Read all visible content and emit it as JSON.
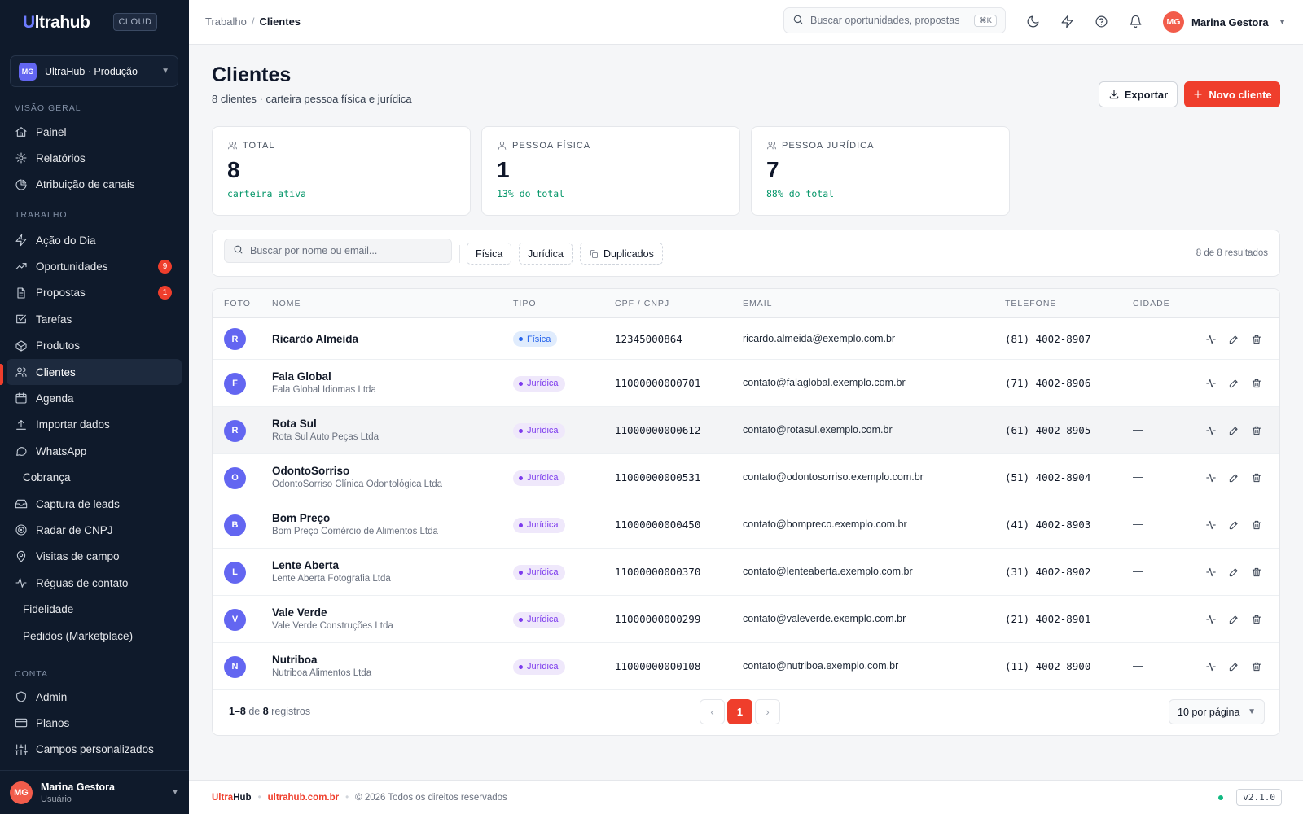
{
  "brand": {
    "name_u": "U",
    "name_rest": "ltrahub",
    "cloud_badge": "CLOUD"
  },
  "workspace": {
    "initials": "MG",
    "name": "UltraHub · Produção"
  },
  "sidebar": {
    "sections": {
      "overview": "VISÃO GERAL",
      "work": "TRABALHO",
      "account": "CONTA"
    },
    "overview_items": [
      {
        "label": "Painel",
        "icon": "home-icon"
      },
      {
        "label": "Relatórios",
        "icon": "chart-icon"
      },
      {
        "label": "Atribuição de canais",
        "icon": "pie-icon"
      }
    ],
    "work_items": [
      {
        "label": "Ação do Dia",
        "icon": "bolt-icon"
      },
      {
        "label": "Oportunidades",
        "icon": "trending-icon",
        "badge": "9"
      },
      {
        "label": "Propostas",
        "icon": "document-icon",
        "badge": "1"
      },
      {
        "label": "Tarefas",
        "icon": "checklist-icon"
      },
      {
        "label": "Produtos",
        "icon": "box-icon"
      },
      {
        "label": "Clientes",
        "icon": "users-icon",
        "active": true
      },
      {
        "label": "Agenda",
        "icon": "calendar-icon"
      },
      {
        "label": "Importar dados",
        "icon": "upload-icon"
      },
      {
        "label": "WhatsApp",
        "icon": "chat-icon"
      },
      {
        "label": "Cobrança",
        "icon": ""
      },
      {
        "label": "Captura de leads",
        "icon": "inbox-icon"
      },
      {
        "label": "Radar de CNPJ",
        "icon": "radar-icon"
      },
      {
        "label": "Visitas de campo",
        "icon": "map-pin-icon"
      },
      {
        "label": "Réguas de contato",
        "icon": "activity-icon"
      },
      {
        "label": "Fidelidade",
        "icon": ""
      },
      {
        "label": "Pedidos (Marketplace)",
        "icon": ""
      }
    ],
    "account_items": [
      {
        "label": "Admin",
        "icon": "shield-icon"
      },
      {
        "label": "Planos",
        "icon": "card-icon"
      },
      {
        "label": "Campos personalizados",
        "icon": "sliders-icon"
      }
    ],
    "user": {
      "initials": "MG",
      "name": "Marina Gestora",
      "role": "Usuário"
    }
  },
  "topbar": {
    "breadcrumb": {
      "parent": "Trabalho",
      "separator": "/",
      "current": "Clientes"
    },
    "search_placeholder": "Buscar oportunidades, propostas",
    "search_shortcut": "⌘K",
    "user": {
      "initials": "MG",
      "name": "Marina Gestora"
    }
  },
  "page": {
    "title": "Clientes",
    "subtitle": "8 clientes · carteira pessoa física e jurídica",
    "export_label": "Exportar",
    "new_label": "Novo cliente"
  },
  "stats": [
    {
      "label": "TOTAL",
      "value": "8",
      "note": "carteira ativa"
    },
    {
      "label": "PESSOA FÍSICA",
      "value": "1",
      "note": "13% do total"
    },
    {
      "label": "PESSOA JURÍDICA",
      "value": "7",
      "note": "88% do total"
    }
  ],
  "filters": {
    "search_placeholder": "Buscar por nome ou email...",
    "chips": [
      "Física",
      "Jurídica",
      "Duplicados"
    ],
    "results": "8 de 8 resultados"
  },
  "table": {
    "headers": [
      "FOTO",
      "NOME",
      "TIPO",
      "CPF / CNPJ",
      "EMAIL",
      "TELEFONE",
      "CIDADE"
    ],
    "rows": [
      {
        "initial": "R",
        "name": "Ricardo Almeida",
        "legal": "",
        "type": "Física",
        "doc": "12345000864",
        "email": "ricardo.almeida@exemplo.com.br",
        "phone": "(81) 4002-8907",
        "city": "—"
      },
      {
        "initial": "F",
        "name": "Fala Global",
        "legal": "Fala Global Idiomas Ltda",
        "type": "Jurídica",
        "doc": "11000000000701",
        "email": "contato@falaglobal.exemplo.com.br",
        "phone": "(71) 4002-8906",
        "city": "—"
      },
      {
        "initial": "R",
        "name": "Rota Sul",
        "legal": "Rota Sul Auto Peças Ltda",
        "type": "Jurídica",
        "doc": "11000000000612",
        "email": "contato@rotasul.exemplo.com.br",
        "phone": "(61) 4002-8905",
        "city": "—"
      },
      {
        "initial": "O",
        "name": "OdontoSorriso",
        "legal": "OdontoSorriso Clínica Odontológica Ltda",
        "type": "Jurídica",
        "doc": "11000000000531",
        "email": "contato@odontosorriso.exemplo.com.br",
        "phone": "(51) 4002-8904",
        "city": "—"
      },
      {
        "initial": "B",
        "name": "Bom Preço",
        "legal": "Bom Preço Comércio de Alimentos Ltda",
        "type": "Jurídica",
        "doc": "11000000000450",
        "email": "contato@bompreco.exemplo.com.br",
        "phone": "(41) 4002-8903",
        "city": "—"
      },
      {
        "initial": "L",
        "name": "Lente Aberta",
        "legal": "Lente Aberta Fotografia Ltda",
        "type": "Jurídica",
        "doc": "11000000000370",
        "email": "contato@lenteaberta.exemplo.com.br",
        "phone": "(31) 4002-8902",
        "city": "—"
      },
      {
        "initial": "V",
        "name": "Vale Verde",
        "legal": "Vale Verde Construções Ltda",
        "type": "Jurídica",
        "doc": "11000000000299",
        "email": "contato@valeverde.exemplo.com.br",
        "phone": "(21) 4002-8901",
        "city": "—"
      },
      {
        "initial": "N",
        "name": "Nutriboa",
        "legal": "Nutriboa Alimentos Ltda",
        "type": "Jurídica",
        "doc": "11000000000108",
        "email": "contato@nutriboa.exemplo.com.br",
        "phone": "(11) 4002-8900",
        "city": "—"
      }
    ]
  },
  "pagination": {
    "range": "1–8",
    "of": "de",
    "total": "8",
    "unit": "registros",
    "current_page": "1",
    "per_page": "10 por página"
  },
  "footer": {
    "brand_a": "Ultra",
    "brand_b": "Hub",
    "site": "ultrahub.com.br",
    "copyright": "© 2026 Todos os direitos reservados",
    "version": "v2.1.0"
  },
  "colors": {
    "accent": "#ef3e2c",
    "sidebar_bg": "#0f1a2b",
    "avatar": "#6366f1",
    "positive": "#059669"
  }
}
